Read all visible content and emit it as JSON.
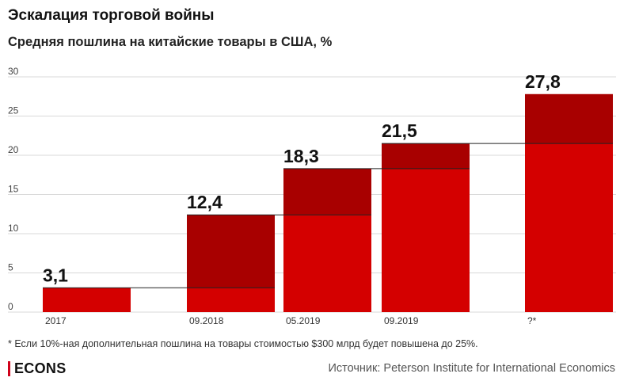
{
  "chart_data": {
    "type": "bar",
    "title": "Эскалация торговой войны",
    "subtitle": "Средняя пошлина на китайские товары в США, %",
    "categories": [
      "2017",
      "09.2018",
      "05.2019",
      "09.2019",
      "?*"
    ],
    "values": [
      3.1,
      12.4,
      18.3,
      21.5,
      27.8
    ],
    "value_labels": [
      "3,1",
      "12,4",
      "18,3",
      "21,5",
      "27,8"
    ],
    "yticks": [
      0,
      5,
      10,
      15,
      20,
      25,
      30
    ],
    "ylim": [
      0,
      30
    ],
    "grid": true,
    "colors": {
      "base": "#d40000",
      "increase": "#a80000",
      "grid": "#d9d9d9",
      "connector": "#222222"
    }
  },
  "footnote": "* Если 10%-ная дополнительная пошлина на товары стоимостью $300 млрд будет повышена до 25%.",
  "brand": "ECONS",
  "source": "Источник: Peterson Institute for International Economics"
}
